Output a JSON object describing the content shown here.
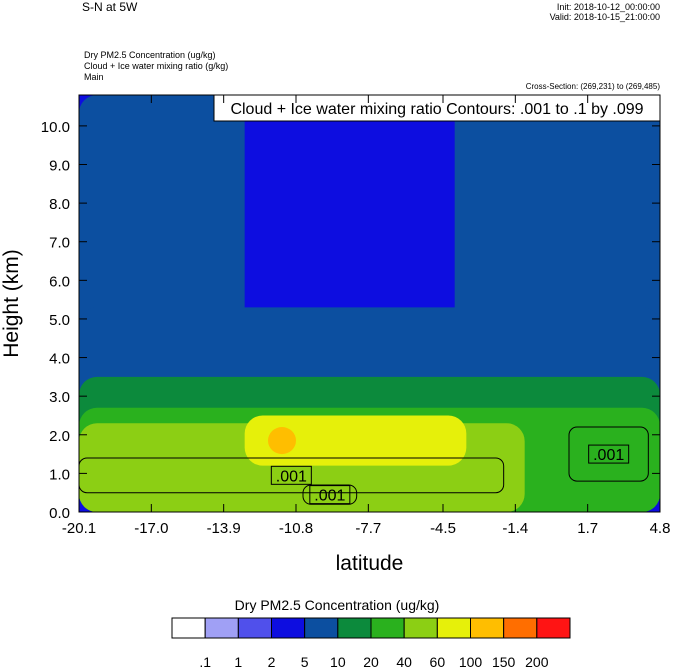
{
  "header": {
    "title": "S-N at 5W",
    "init": "Init: 2018-10-12_00:00:00",
    "valid": "Valid: 2018-10-15_21:00:00",
    "fields": [
      "Dry PM2.5 Concentration   (ug/kg)",
      "Cloud + Ice water mixing ratio   (g/kg)",
      "Main"
    ],
    "cross_section": "Cross-Section: (269,231) to (269,485)"
  },
  "chart_data": {
    "type": "heatmap",
    "title": "",
    "contour_title": "Cloud + Ice water mixing ratio Contours: .001 to .1 by .099",
    "xlabel": "latitude",
    "ylabel": "Height (km)",
    "xlim": [
      -20.1,
      4.8
    ],
    "ylim": [
      0.0,
      10.8
    ],
    "x_ticks": [
      -20.1,
      -17.0,
      -13.9,
      -10.8,
      -7.7,
      -4.5,
      -1.4,
      1.7,
      4.8
    ],
    "x_tick_labels": [
      "-20.1",
      "-17.0",
      "-13.9",
      "-10.8",
      "-7.7",
      "-4.5",
      "-1.4",
      "1.7",
      "4.8"
    ],
    "y_ticks": [
      0.0,
      1.0,
      2.0,
      3.0,
      4.0,
      5.0,
      6.0,
      7.0,
      8.0,
      9.0,
      10.0
    ],
    "y_tick_labels": [
      "0.0",
      "1.0",
      "2.0",
      "3.0",
      "4.0",
      "5.0",
      "6.0",
      "7.0",
      "8.0",
      "9.0",
      "10.0"
    ],
    "colorbar": {
      "title": "Dry PM2.5 Concentration  (ug/kg)",
      "levels": [
        ".1",
        "1",
        "2",
        "5",
        "10",
        "20",
        "40",
        "60",
        "100",
        "150",
        "200"
      ],
      "colors": [
        "#ffffff",
        "#a0a0f5",
        "#5050eb",
        "#0d0de0",
        "#0c4fa0",
        "#0c8a3c",
        "#2ab11e",
        "#8ccf14",
        "#e6f00a",
        "#ffbe00",
        "#ff6e00",
        "#ff1414"
      ]
    },
    "pm25_regions": [
      {
        "level_index": 3,
        "x": [
          -20.1,
          4.8
        ],
        "y": [
          0.0,
          10.8
        ]
      },
      {
        "level_index": 4,
        "x": [
          -20.1,
          -13.0
        ],
        "y": [
          0.0,
          10.8
        ]
      },
      {
        "level_index": 4,
        "x": [
          -4.0,
          4.8
        ],
        "y": [
          0.0,
          10.8
        ]
      },
      {
        "level_index": 4,
        "x": [
          -20.1,
          4.8
        ],
        "y": [
          0.0,
          5.3
        ]
      },
      {
        "level_index": 5,
        "x": [
          -20.1,
          4.8
        ],
        "y": [
          0.0,
          3.5
        ]
      },
      {
        "level_index": 6,
        "x": [
          -20.1,
          4.8
        ],
        "y": [
          0.0,
          2.7
        ]
      },
      {
        "level_index": 7,
        "x": [
          -20.1,
          -1.0
        ],
        "y": [
          0.0,
          2.3
        ]
      },
      {
        "level_index": 8,
        "x": [
          -13.0,
          -3.5
        ],
        "y": [
          1.2,
          2.5
        ]
      },
      {
        "level_index": 9,
        "x": [
          -12.0,
          -10.8
        ],
        "y": [
          1.5,
          2.2
        ]
      }
    ],
    "contours": [
      {
        "value": 0.001,
        "label": ".001",
        "x": [
          -20.1,
          -1.9
        ],
        "y": [
          0.5,
          1.4
        ]
      },
      {
        "value": 0.001,
        "label": ".001",
        "x": [
          -10.5,
          -8.2
        ],
        "y": [
          0.2,
          0.7
        ]
      },
      {
        "value": 0.001,
        "label": ".001",
        "x": [
          0.9,
          4.3
        ],
        "y": [
          0.8,
          2.2
        ]
      }
    ]
  }
}
